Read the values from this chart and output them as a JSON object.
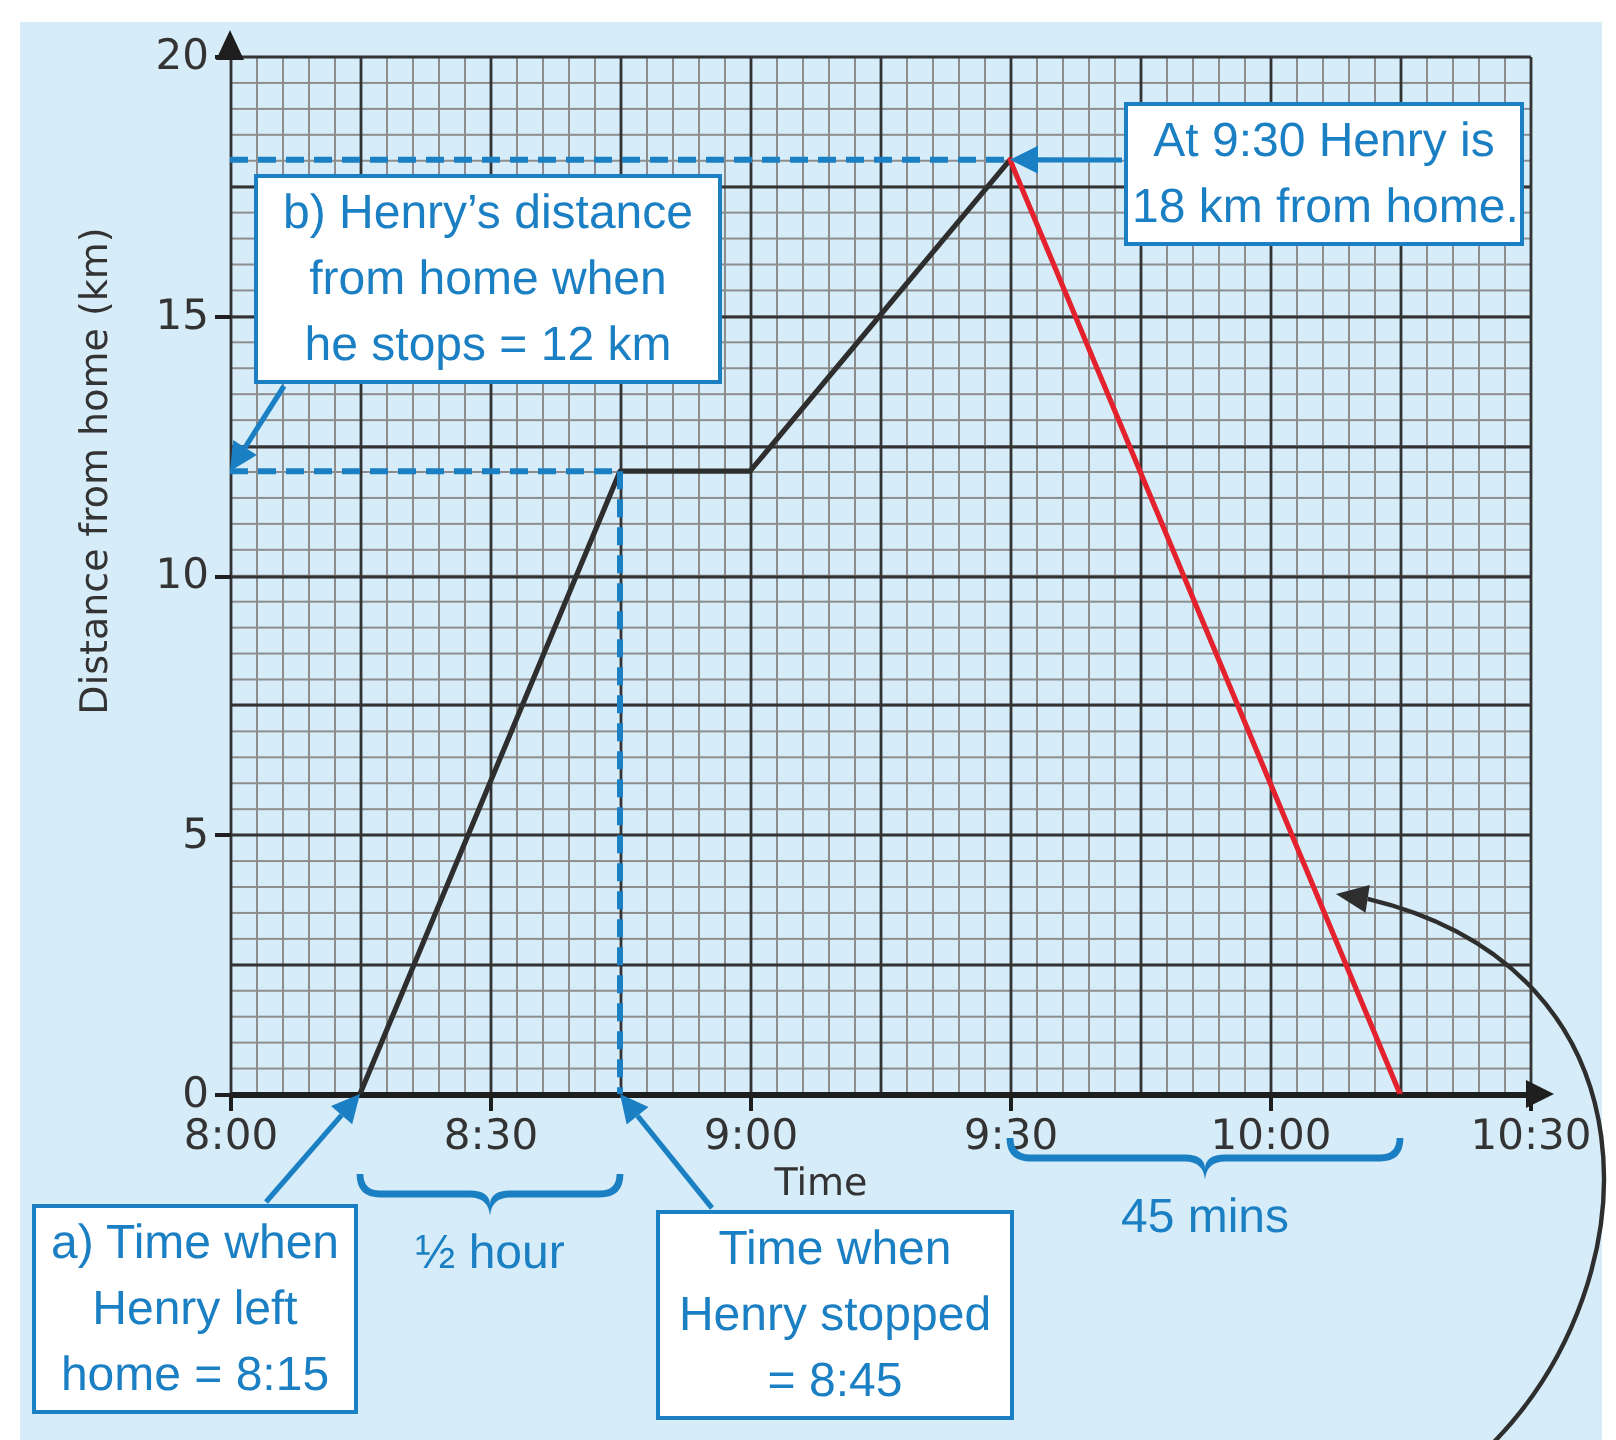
{
  "chart_data": {
    "type": "line",
    "xlabel": "Time",
    "ylabel": "Distance from home (km)",
    "xlim": [
      8,
      10.5
    ],
    "ylim": [
      0,
      20
    ],
    "xticks": [
      {
        "value": 8,
        "label": "8:00"
      },
      {
        "value": 8.25,
        "label": null
      },
      {
        "value": 8.5,
        "label": "8:30"
      },
      {
        "value": 8.75,
        "label": null
      },
      {
        "value": 9,
        "label": "9:00"
      },
      {
        "value": 9.25,
        "label": null
      },
      {
        "value": 9.5,
        "label": "9:30"
      },
      {
        "value": 9.75,
        "label": null
      },
      {
        "value": 10,
        "label": "10:00"
      },
      {
        "value": 10.25,
        "label": null
      },
      {
        "value": 10.5,
        "label": "10:30"
      }
    ],
    "yticks": [
      0,
      {
        "value": 2.5,
        "label": null
      },
      5,
      {
        "value": 7.5,
        "label": null
      },
      10,
      {
        "value": 12.5,
        "label": null
      },
      15,
      {
        "value": 17.5,
        "label": null
      },
      20
    ],
    "grid": true,
    "series": [
      {
        "color": "#2e2e2e",
        "x": [
          8.25,
          8.75,
          9,
          9.5
        ],
        "values": [
          0,
          12,
          12,
          18
        ]
      },
      {
        "color": "#e3222e",
        "x": [
          9.5,
          10.25
        ],
        "values": [
          18,
          0
        ]
      },
      {
        "color": "#1b7fc3",
        "line_style": "dashed",
        "x": [
          8,
          9.5
        ],
        "values": [
          18,
          18
        ]
      },
      {
        "color": "#1b7fc3",
        "line_style": "dashed",
        "x": [
          8,
          8.75
        ],
        "values": [
          12,
          12
        ]
      },
      {
        "color": "#1b7fc3",
        "line_style": "dashed",
        "x": [
          8.75,
          8.75
        ],
        "values": [
          12,
          0
        ]
      }
    ],
    "annotations": [
      {
        "text": "b) Henry’s distance\nfrom home when\nhe stops = 12 km",
        "x": 8,
        "y": 12
      },
      {
        "text": "At 9:30 Henry is\n18 km from home.",
        "x": 9.5,
        "y": 18
      },
      {
        "text": "a) Time when\nHenry left\nhome = 8:15",
        "x": 8.25,
        "y": 0
      },
      "½ hour",
      {
        "text": "Time when\nHenry stopped\n= 8:45",
        "x": 8.75,
        "y": 0
      },
      "45 mins"
    ]
  }
}
